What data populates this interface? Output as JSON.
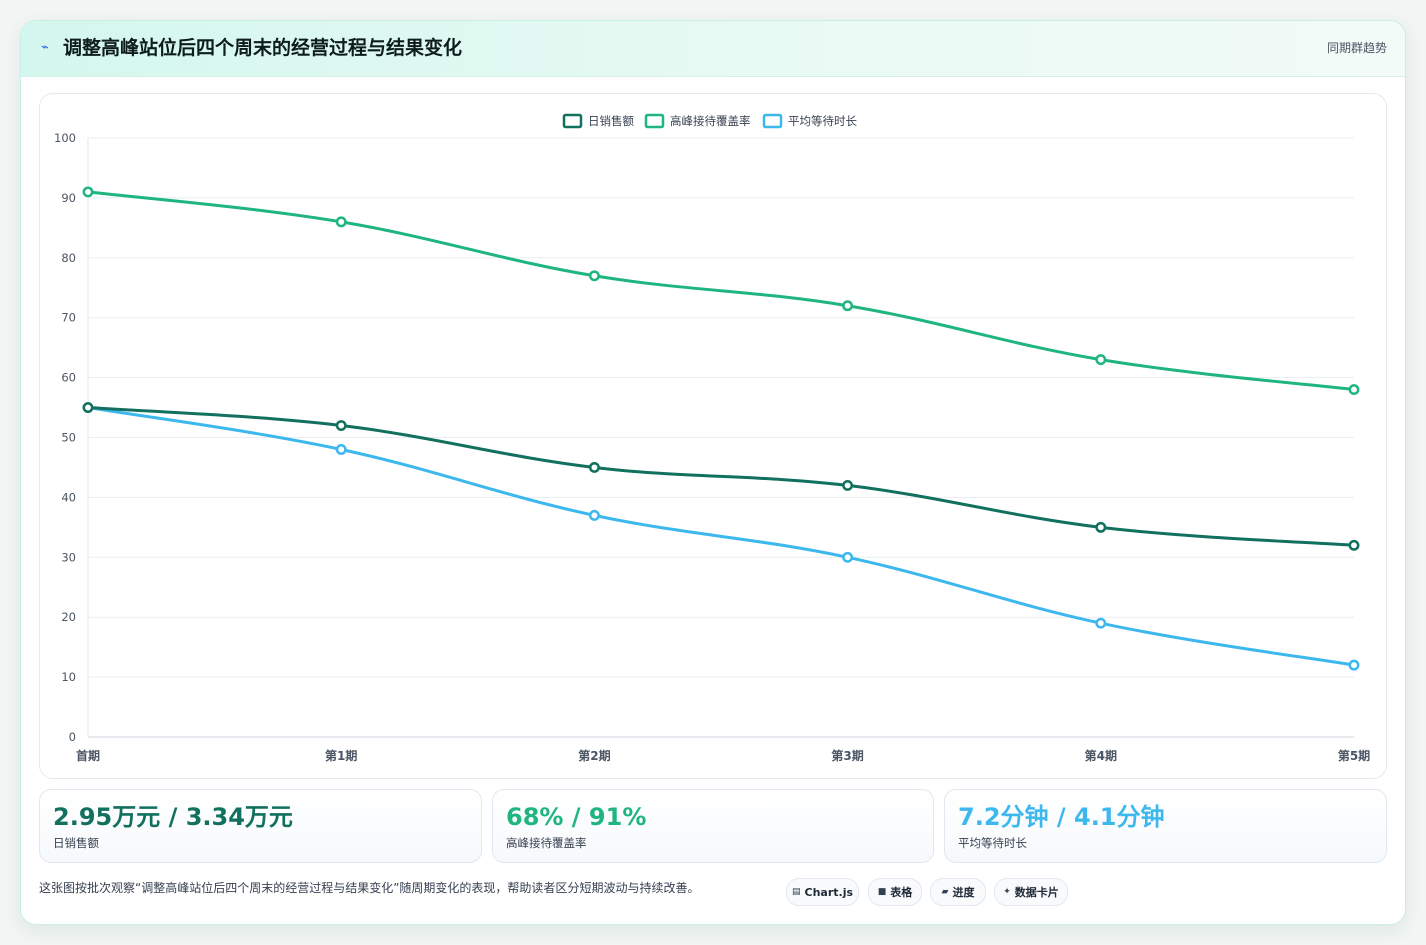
{
  "header": {
    "title": "调整高峰站位后四个周末的经营过程与结果变化",
    "right_label": "同期群趋势",
    "icon": "lightning-icon"
  },
  "chart_data": {
    "type": "line",
    "categories": [
      "首期",
      "第1期",
      "第2期",
      "第3期",
      "第4期",
      "第5期"
    ],
    "series": [
      {
        "name": "日销售额",
        "color": "#12705e",
        "values": [
          55,
          52,
          45,
          42,
          35,
          32
        ]
      },
      {
        "name": "高峰接待覆盖率",
        "color": "#1fb57e",
        "values": [
          91,
          86,
          77,
          72,
          63,
          58
        ]
      },
      {
        "name": "平均等待时长",
        "color": "#3db8ee",
        "values": [
          55,
          48,
          37,
          30,
          19,
          12
        ]
      }
    ],
    "ylim": [
      0,
      100
    ],
    "yticks": [
      0,
      10,
      20,
      30,
      40,
      50,
      60,
      70,
      80,
      90,
      100
    ],
    "legend_position": "top-center",
    "grid": true
  },
  "stats": [
    {
      "value": "2.95万元 / 3.34万元",
      "label": "日销售额",
      "color": "#12705e"
    },
    {
      "value": "68% / 91%",
      "label": "高峰接待覆盖率",
      "color": "#1fb57e"
    },
    {
      "value": "7.2分钟 / 4.1分钟",
      "label": "平均等待时长",
      "color": "#3db8ee"
    }
  ],
  "footer": {
    "note": "这张图按批次观察“调整高峰站位后四个周末的经营过程与结果变化”随周期变化的表现，帮助读者区分短期波动与持续改善。",
    "tags": [
      {
        "icon": "▤",
        "label": "Chart.js"
      },
      {
        "icon": "■",
        "label": "表格"
      },
      {
        "icon": "▰",
        "label": "进度"
      },
      {
        "icon": "✦",
        "label": "数据卡片"
      }
    ]
  }
}
